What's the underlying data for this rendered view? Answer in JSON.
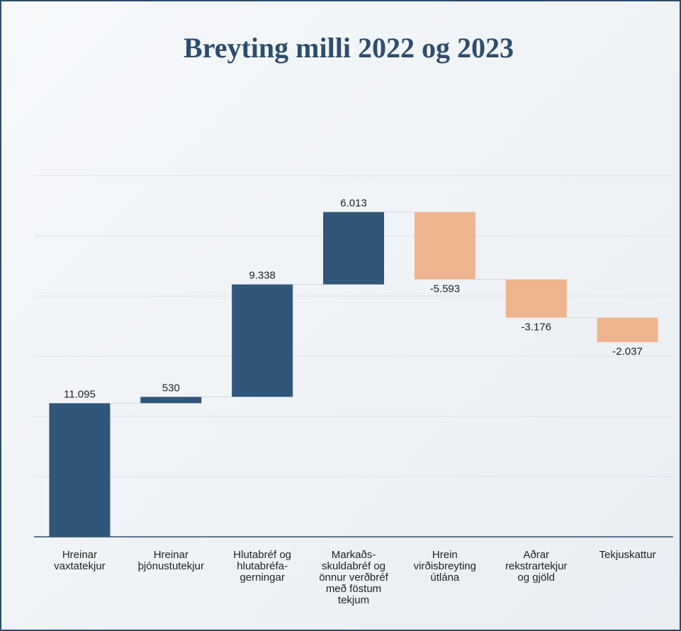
{
  "chart_data": {
    "type": "waterfall",
    "title": "Breyting milli 2022 og 2023",
    "categories": [
      "Hreinar\nvaxtatekjur",
      "Hreinar\nþjónustutekjur",
      "Hlutabréf og\nhlutabréfa-\ngerningar",
      "Markaðs-\nskuldabréf og\nönnur verðbréf\nmeð föstum\ntekjum",
      "Hrein\nvirðisbreyting\nútlána",
      "Aðrar\nrekstrartekjur\nog gjöld",
      "Tekjuskattur"
    ],
    "values": [
      11095,
      530,
      9338,
      6013,
      -5593,
      -3176,
      -2037
    ],
    "value_labels": [
      "11.095",
      "530",
      "9.338",
      "6.013",
      "-5.593",
      "-3.176",
      "-2.037"
    ],
    "colors": {
      "increase": "#30567a",
      "decrease": "#eeb48e"
    },
    "ylim": [
      0,
      30000
    ],
    "yticks": [
      0,
      5000,
      10000,
      15000,
      20000,
      25000,
      30000
    ],
    "grid": true
  }
}
